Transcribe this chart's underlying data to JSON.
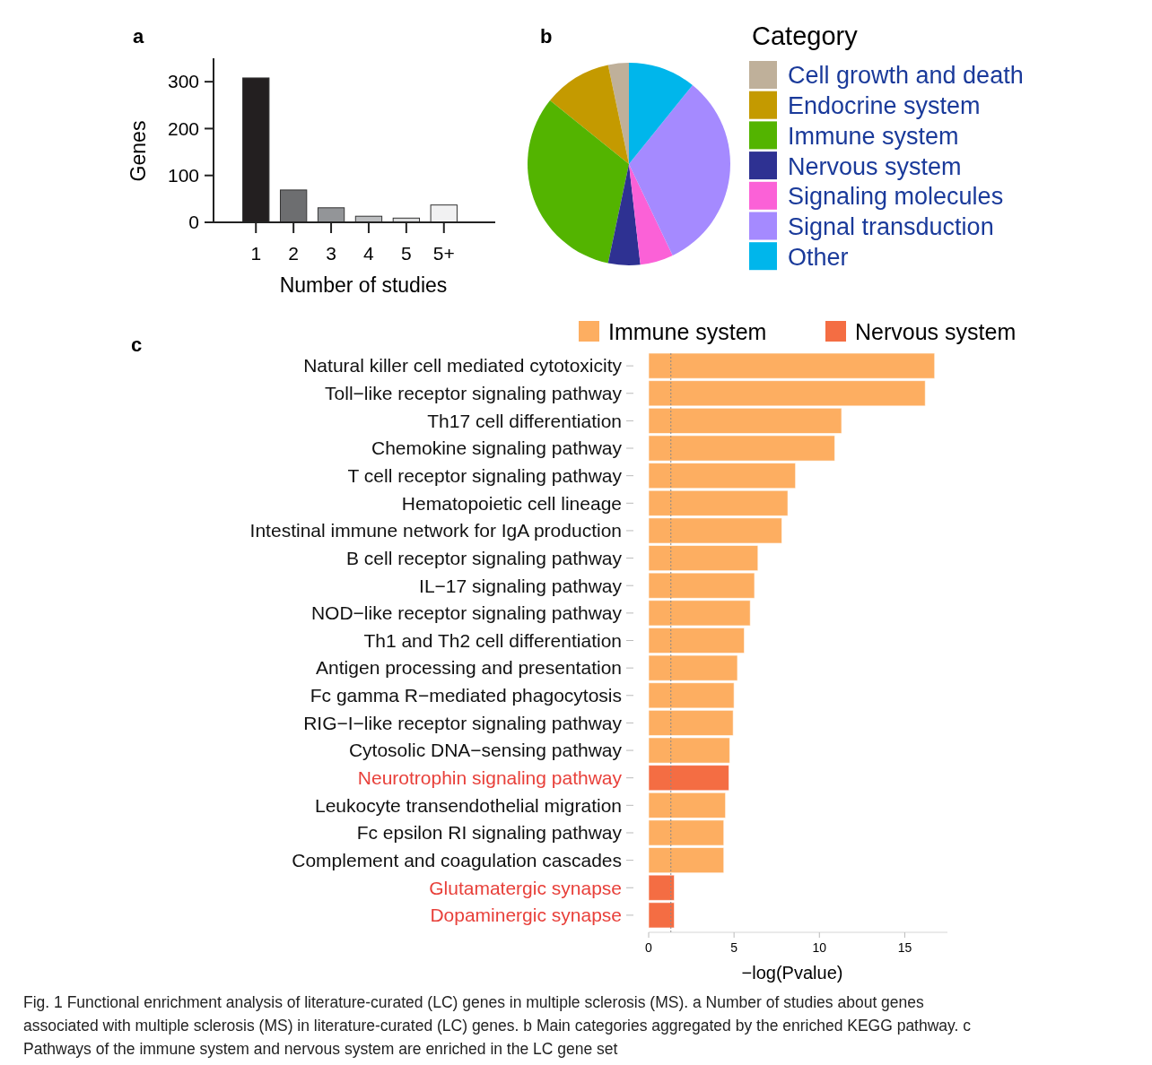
{
  "chart_data": [
    {
      "type": "bar",
      "title": "a",
      "categories": [
        "1",
        "2",
        "3",
        "4",
        "5",
        "5+"
      ],
      "values": [
        308,
        69,
        31,
        13,
        9,
        37
      ],
      "colors": [
        "#231f20",
        "#6d6e70",
        "#939598",
        "#bcbec0",
        "#dcddde",
        "#f1f1f2"
      ],
      "xlabel": "Number of studies",
      "ylabel": "Genes",
      "ylim": [
        0,
        350
      ],
      "yticks": [
        0,
        100,
        200,
        300
      ]
    },
    {
      "type": "pie",
      "title": "b",
      "legend_title": "Category",
      "legend": "right",
      "categories": [
        "Cell growth and death",
        "Endocrine system",
        "Immune system",
        "Nervous system",
        "Signaling molecules",
        "Signal transduction",
        "Other"
      ],
      "values": [
        3.3,
        10.9,
        32.5,
        5.1,
        5.3,
        32.1,
        10.8
      ],
      "colors": [
        "#bfb09a",
        "#c49a00",
        "#53b400",
        "#2e3192",
        "#fb61d7",
        "#a58aff",
        "#00b6eb"
      ]
    },
    {
      "type": "bar",
      "title": "c",
      "orientation": "horizontal",
      "legend": "top",
      "grid": false,
      "xlabel": "−log(Pvalue)",
      "xlim": [
        0,
        17.5
      ],
      "xticks": [
        0,
        5,
        10,
        15
      ],
      "categories": [
        "Natural killer cell mediated cytotoxicity",
        "Toll−like receptor signaling pathway",
        "Th17 cell differentiation",
        "Chemokine signaling pathway",
        "T cell receptor signaling pathway",
        "Hematopoietic cell lineage",
        "Intestinal immune network for IgA production",
        "B cell receptor signaling pathway",
        "IL−17 signaling pathway",
        "NOD−like receptor signaling pathway",
        "Th1 and Th2 cell differentiation",
        "Antigen processing and presentation",
        "Fc gamma R−mediated phagocytosis",
        "RIG−I−like receptor signaling pathway",
        "Cytosolic DNA−sensing pathway",
        "Neurotrophin signaling pathway",
        "Leukocyte transendothelial migration",
        "Fc epsilon RI signaling pathway",
        "Complement and coagulation cascades",
        "Glutamatergic synapse",
        "Dopaminergic synapse"
      ],
      "series": [
        {
          "name": "Immune system",
          "color": "#fdae61",
          "values": [
            16.75,
            16.2,
            11.3,
            10.9,
            8.6,
            8.15,
            7.8,
            6.4,
            6.2,
            5.95,
            5.6,
            5.2,
            5.0,
            4.95,
            4.75,
            null,
            4.5,
            4.4,
            4.4,
            null,
            null
          ]
        },
        {
          "name": "Nervous system",
          "color": "#f46d43",
          "values": [
            null,
            null,
            null,
            null,
            null,
            null,
            null,
            null,
            null,
            null,
            null,
            null,
            null,
            null,
            null,
            4.7,
            null,
            null,
            null,
            1.5,
            1.5
          ]
        }
      ],
      "ref_lines": [
        {
          "axis": "x",
          "value": 1.3,
          "line_style": "dotted",
          "color": "#888888"
        }
      ],
      "annotations": [
        "Fig. 1  Functional enrichment analysis of literature-curated (LC) genes in multiple sclerosis (MS). a Number of studies about genes associated with multiple sclerosis (MS) in literature-curated (LC) genes. b Main categories aggregated by the enriched KEGG pathway. c Pathways of the immune system and nervous system are enriched in the LC gene set"
      ]
    }
  ]
}
